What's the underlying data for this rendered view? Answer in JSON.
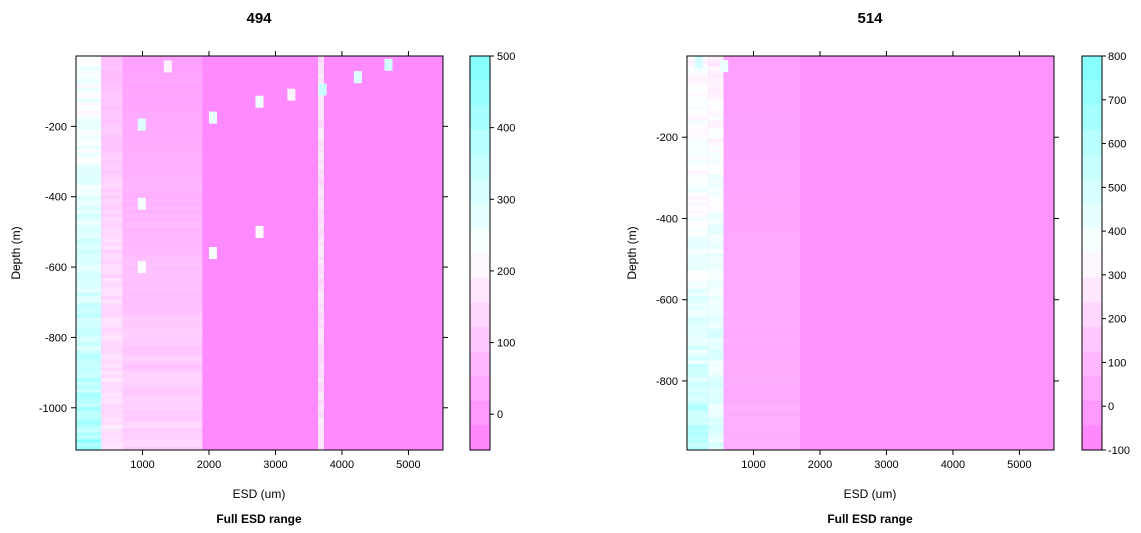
{
  "colors": {
    "low": "#ff80ff",
    "mid": "#ffffff",
    "high": "#80ffff",
    "frame": "#000000"
  },
  "chart_data": [
    {
      "type": "heatmap",
      "title": "494",
      "subtitle": "Full ESD range",
      "xlabel": "ESD (um)",
      "ylabel": "Depth (m)",
      "xlim": [
        0,
        5520
      ],
      "ylim": [
        -1120,
        0
      ],
      "xticks": [
        1000,
        2000,
        3000,
        4000,
        5000
      ],
      "xtick_labels": [
        "1000",
        "2000",
        "3000",
        "4000",
        "5000"
      ],
      "yticks": [
        -200,
        -400,
        -600,
        -800,
        -1000
      ],
      "ytick_labels": [
        "-200",
        "-400",
        "-600",
        "-800",
        "-1000"
      ],
      "colorbar": {
        "range": [
          -50,
          500
        ],
        "ticks": [
          0,
          100,
          200,
          300,
          400,
          500
        ],
        "tick_labels": [
          "0",
          "100",
          "200",
          "300",
          "400",
          "500"
        ]
      },
      "bands": [
        {
          "x0": 0,
          "x1": 380,
          "y_profile": [
            [
              0,
              230
            ],
            [
              -250,
              250
            ],
            [
              -500,
              300
            ],
            [
              -700,
              320
            ],
            [
              -900,
              360
            ],
            [
              -1120,
              420
            ]
          ]
        },
        {
          "x0": 380,
          "x1": 700,
          "y_profile": [
            [
              0,
              80
            ],
            [
              -500,
              140
            ],
            [
              -1120,
              170
            ]
          ]
        },
        {
          "x0": 700,
          "x1": 1900,
          "y_profile": [
            [
              0,
              20
            ],
            [
              -400,
              60
            ],
            [
              -800,
              110
            ],
            [
              -1120,
              130
            ]
          ]
        },
        {
          "x0": 3640,
          "x1": 3730,
          "y_profile": [
            [
              0,
              160
            ],
            [
              -1120,
              160
            ]
          ]
        }
      ],
      "hotspots": [
        {
          "x": 990,
          "y": -195,
          "value": 300
        },
        {
          "x": 2060,
          "y": -175,
          "value": 280
        },
        {
          "x": 2760,
          "y": -130,
          "value": 260
        },
        {
          "x": 3240,
          "y": -110,
          "value": 200
        },
        {
          "x": 3710,
          "y": -95,
          "value": 350
        },
        {
          "x": 4240,
          "y": -60,
          "value": 300
        },
        {
          "x": 4700,
          "y": -25,
          "value": 330
        },
        {
          "x": 990,
          "y": -420,
          "value": 250
        },
        {
          "x": 2060,
          "y": -560,
          "value": 240
        },
        {
          "x": 2760,
          "y": -500,
          "value": 220
        },
        {
          "x": 990,
          "y": -600,
          "value": 230
        },
        {
          "x": 1380,
          "y": -30,
          "value": 200
        }
      ]
    },
    {
      "type": "heatmap",
      "title": "514",
      "subtitle": "Full ESD range",
      "xlabel": "ESD (um)",
      "ylabel": "Depth (m)",
      "xlim": [
        0,
        5520
      ],
      "ylim": [
        -970,
        0
      ],
      "xticks": [
        1000,
        2000,
        3000,
        4000,
        5000
      ],
      "xtick_labels": [
        "1000",
        "2000",
        "3000",
        "4000",
        "5000"
      ],
      "yticks": [
        -200,
        -400,
        -600,
        -800
      ],
      "ytick_labels": [
        "-200",
        "-400",
        "-600",
        "-800"
      ],
      "colorbar": {
        "range": [
          -100,
          800
        ],
        "ticks": [
          -100,
          0,
          100,
          200,
          300,
          400,
          500,
          600,
          700,
          800
        ],
        "tick_labels": [
          "-100",
          "0",
          "100",
          "200",
          "300",
          "400",
          "500",
          "600",
          "700",
          "800"
        ]
      },
      "bands": [
        {
          "x0": 0,
          "x1": 320,
          "y_profile": [
            [
              0,
              330
            ],
            [
              -400,
              380
            ],
            [
              -700,
              450
            ],
            [
              -970,
              620
            ]
          ]
        },
        {
          "x0": 320,
          "x1": 550,
          "y_profile": [
            [
              0,
              300
            ],
            [
              -500,
              420
            ],
            [
              -970,
              480
            ]
          ]
        },
        {
          "x0": 550,
          "x1": 1700,
          "y_profile": [
            [
              0,
              10
            ],
            [
              -500,
              40
            ],
            [
              -970,
              70
            ]
          ]
        }
      ],
      "hotspots": [
        {
          "x": 180,
          "y": -15,
          "value": 500
        },
        {
          "x": 560,
          "y": -25,
          "value": 420
        }
      ]
    }
  ]
}
